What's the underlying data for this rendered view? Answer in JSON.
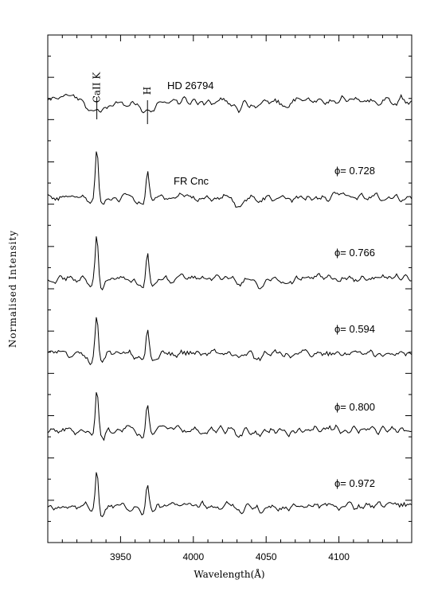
{
  "chart_data": {
    "type": "line",
    "xlabel": "Wavelength(Å)",
    "ylabel": "Normalised Intensity",
    "xlim": [
      3900,
      4150
    ],
    "x_ticks": [
      3950,
      4000,
      4050,
      4100
    ],
    "line_markers": [
      {
        "label": "CaII K",
        "x": 3933.7
      },
      {
        "label": "H",
        "x": 3968.5
      }
    ],
    "series": [
      {
        "name": "HD 26794",
        "phase": "",
        "type": "standard"
      },
      {
        "name": "FR Cnc",
        "phase": "ϕ= 0.728",
        "type": "emission"
      },
      {
        "name": "",
        "phase": "ϕ= 0.766",
        "type": "emission"
      },
      {
        "name": "",
        "phase": "ϕ= 0.594",
        "type": "emission"
      },
      {
        "name": "",
        "phase": "ϕ= 0.800",
        "type": "emission"
      },
      {
        "name": "",
        "phase": "ϕ= 0.972",
        "type": "emission"
      }
    ]
  }
}
